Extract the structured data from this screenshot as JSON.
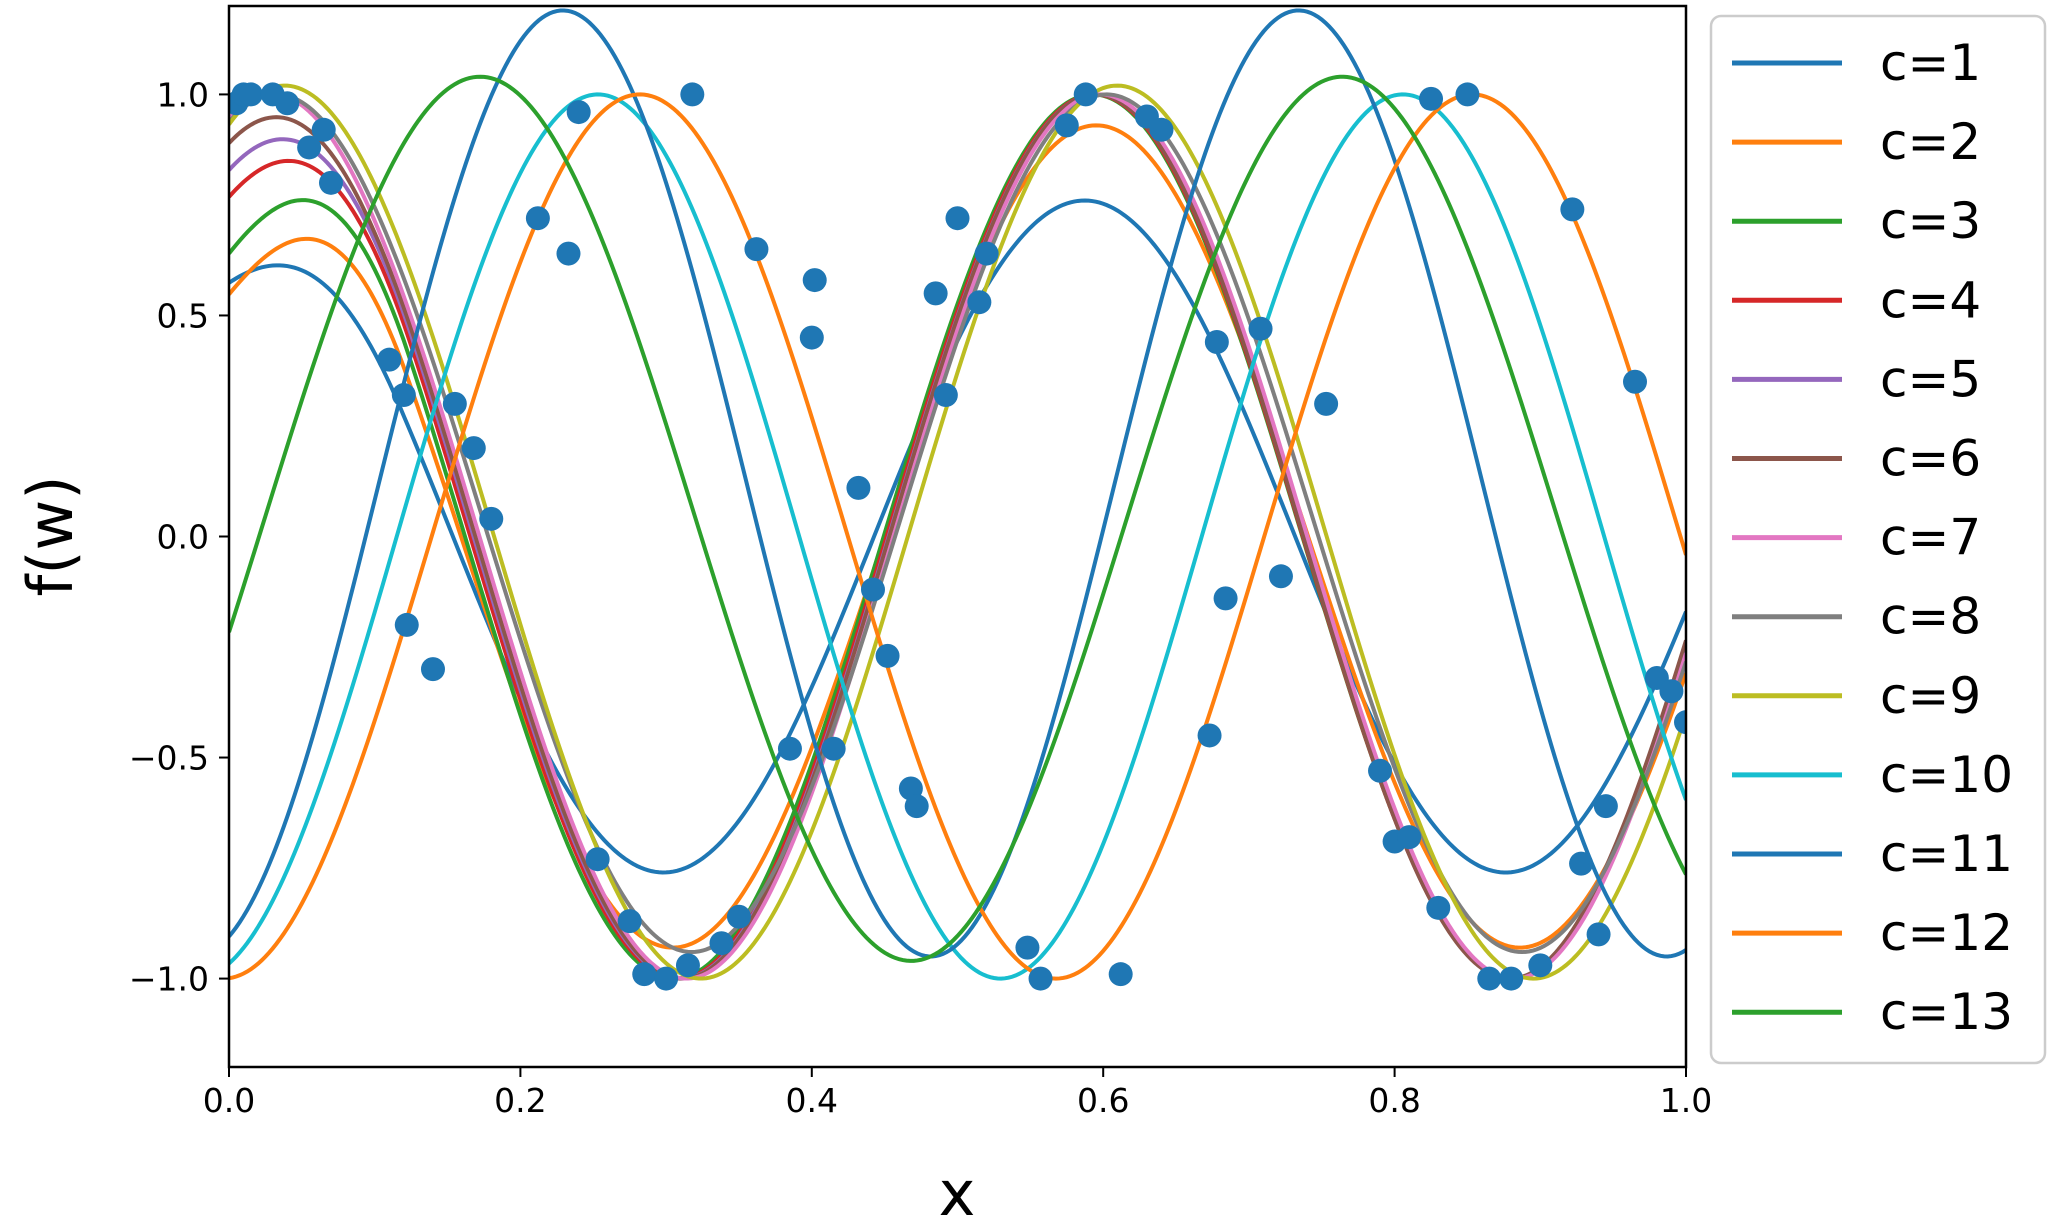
{
  "chart_data": {
    "type": "line",
    "xlabel": "x",
    "ylabel": "f(w)",
    "xlim": [
      0.0,
      1.0
    ],
    "ylim": [
      -1.2,
      1.2
    ],
    "xticks": [
      0.0,
      0.2,
      0.4,
      0.6,
      0.8,
      1.0
    ],
    "xtick_labels": [
      "0.0",
      "0.2",
      "0.4",
      "0.6",
      "0.8",
      "1.0"
    ],
    "yticks": [
      -1.0,
      -0.5,
      0.0,
      0.5,
      1.0
    ],
    "ytick_labels": [
      "−1.0",
      "−0.5",
      "0.0",
      "0.5",
      "1.0"
    ],
    "grid": false,
    "legend_position": "outside right",
    "scatter": {
      "color": "#1f77b4",
      "points": [
        [
          0.005,
          0.98
        ],
        [
          0.01,
          1.0
        ],
        [
          0.015,
          1.0
        ],
        [
          0.03,
          1.0
        ],
        [
          0.04,
          0.98
        ],
        [
          0.055,
          0.88
        ],
        [
          0.065,
          0.92
        ],
        [
          0.07,
          0.8
        ],
        [
          0.11,
          0.4
        ],
        [
          0.12,
          0.32
        ],
        [
          0.122,
          -0.2
        ],
        [
          0.14,
          -0.3
        ],
        [
          0.155,
          0.3
        ],
        [
          0.168,
          0.2
        ],
        [
          0.18,
          0.04
        ],
        [
          0.212,
          0.72
        ],
        [
          0.233,
          0.64
        ],
        [
          0.24,
          0.96
        ],
        [
          0.253,
          -0.73
        ],
        [
          0.275,
          -0.87
        ],
        [
          0.285,
          -0.99
        ],
        [
          0.3,
          -1.0
        ],
        [
          0.315,
          -0.97
        ],
        [
          0.318,
          1.0
        ],
        [
          0.338,
          -0.92
        ],
        [
          0.35,
          -0.86
        ],
        [
          0.362,
          0.65
        ],
        [
          0.385,
          -0.48
        ],
        [
          0.4,
          0.45
        ],
        [
          0.402,
          0.58
        ],
        [
          0.415,
          -0.48
        ],
        [
          0.432,
          0.11
        ],
        [
          0.442,
          -0.12
        ],
        [
          0.452,
          -0.27
        ],
        [
          0.468,
          -0.57
        ],
        [
          0.472,
          -0.61
        ],
        [
          0.485,
          0.55
        ],
        [
          0.492,
          0.32
        ],
        [
          0.5,
          0.72
        ],
        [
          0.515,
          0.53
        ],
        [
          0.52,
          0.64
        ],
        [
          0.548,
          -0.93
        ],
        [
          0.557,
          -1.0
        ],
        [
          0.575,
          0.93
        ],
        [
          0.588,
          1.0
        ],
        [
          0.612,
          -0.99
        ],
        [
          0.63,
          0.95
        ],
        [
          0.64,
          0.92
        ],
        [
          0.673,
          -0.45
        ],
        [
          0.678,
          0.44
        ],
        [
          0.684,
          -0.14
        ],
        [
          0.708,
          0.47
        ],
        [
          0.722,
          -0.09
        ],
        [
          0.753,
          0.3
        ],
        [
          0.79,
          -0.53
        ],
        [
          0.8,
          -0.69
        ],
        [
          0.81,
          -0.68
        ],
        [
          0.825,
          0.99
        ],
        [
          0.83,
          -0.84
        ],
        [
          0.85,
          1.0
        ],
        [
          0.865,
          -1.0
        ],
        [
          0.88,
          -1.0
        ],
        [
          0.9,
          -0.97
        ],
        [
          0.922,
          0.74
        ],
        [
          0.928,
          -0.74
        ],
        [
          0.94,
          -0.9
        ],
        [
          0.945,
          -0.61
        ],
        [
          0.965,
          0.35
        ],
        [
          0.98,
          -0.32
        ],
        [
          0.99,
          -0.35
        ],
        [
          1.0,
          -0.42
        ]
      ]
    },
    "series": [
      {
        "name": "c=1",
        "color": "#1f77b4",
        "type": "sine",
        "amp": 0.76,
        "freq": 1.73,
        "phase": -0.1,
        "offset": 0,
        "ramp": 0.4
      },
      {
        "name": "c=2",
        "color": "#ff7f0e",
        "type": "sine",
        "amp": 0.93,
        "freq": 1.72,
        "phase": -0.15,
        "offset": 0,
        "ramp": 0.6
      },
      {
        "name": "c=3",
        "color": "#2ca02c",
        "type": "sine",
        "amp": 1.0,
        "freq": 1.74,
        "phase": -0.2,
        "offset": 0,
        "ramp": 0.5
      },
      {
        "name": "c=4",
        "color": "#d62728",
        "type": "sine",
        "amp": 1.0,
        "freq": 1.75,
        "phase": -0.25,
        "offset": 0,
        "ramp": 0.3
      },
      {
        "name": "c=5",
        "color": "#9467bd",
        "type": "sine",
        "amp": 1.0,
        "freq": 1.755,
        "phase": -0.28,
        "offset": 0,
        "ramp": 0.2
      },
      {
        "name": "c=6",
        "color": "#8c564b",
        "type": "sine",
        "amp": 1.0,
        "freq": 1.76,
        "phase": -0.3,
        "offset": 0,
        "ramp": 0.1
      },
      {
        "name": "c=7",
        "color": "#e377c2",
        "type": "sine",
        "amp": 1.0,
        "freq": 1.76,
        "phase": -0.33,
        "offset": 0,
        "ramp": 0.0
      },
      {
        "name": "c=8",
        "color": "#7f7f7f",
        "type": "sine",
        "amp": 0.97,
        "freq": 1.755,
        "phase": -0.36,
        "offset": 0.03,
        "ramp": 0.0
      },
      {
        "name": "c=9",
        "color": "#bcbd22",
        "type": "sine",
        "amp": 1.01,
        "freq": 1.75,
        "phase": -0.42,
        "offset": 0.01,
        "ramp": 0.0
      },
      {
        "name": "c=10",
        "color": "#17becf",
        "type": "sine",
        "amp": 1.0,
        "freq": 1.81,
        "phase": -2.88,
        "offset": 0,
        "ramp": 0.0
      },
      {
        "name": "c=11",
        "color": "#1f77b4",
        "type": "sine",
        "amp": 1.07,
        "freq": 1.98,
        "phase": -2.85,
        "offset": 0.12,
        "ramp": 0.0
      },
      {
        "name": "c=12",
        "color": "#ff7f0e",
        "type": "sine",
        "amp": 1.0,
        "freq": 1.75,
        "phase": -3.1,
        "offset": 0,
        "ramp": 0.0
      },
      {
        "name": "c=13",
        "color": "#2ca02c",
        "type": "sine",
        "amp": 1.0,
        "freq": 1.69,
        "phase": -1.83,
        "offset": 0.04,
        "ramp": 0.0
      }
    ]
  }
}
